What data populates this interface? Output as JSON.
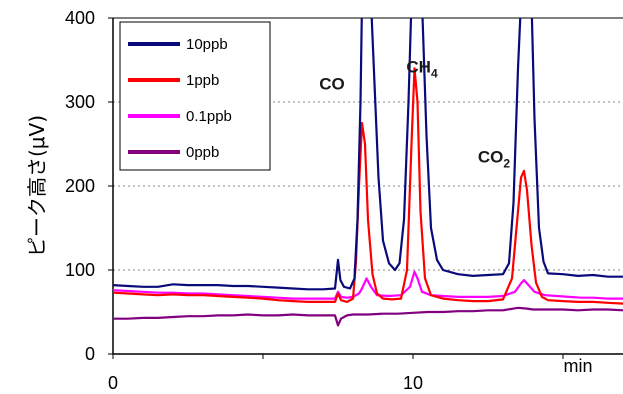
{
  "chart_data": {
    "type": "line",
    "xlabel": "min",
    "ylabel": "ピーク高さ(μV)",
    "xlim": [
      0,
      17
    ],
    "ylim": [
      0,
      400
    ],
    "x_ticks": [
      0,
      10
    ],
    "y_ticks": [
      0,
      100,
      200,
      300,
      400
    ],
    "grid": "horizontal dotted",
    "legend": "top-left",
    "annotations": [
      {
        "text": "CO",
        "sub": "",
        "x": 7.3,
        "y": 315
      },
      {
        "text": "CH",
        "sub": "4",
        "x": 10.3,
        "y": 335
      },
      {
        "text": "CO",
        "sub": "2",
        "x": 12.7,
        "y": 228
      }
    ],
    "series": [
      {
        "name": "10ppb",
        "color": "#0a0a7a",
        "points": [
          [
            0,
            82
          ],
          [
            0.5,
            81
          ],
          [
            1,
            80
          ],
          [
            1.5,
            80
          ],
          [
            2,
            83
          ],
          [
            2.5,
            82
          ],
          [
            3,
            82
          ],
          [
            3.5,
            82
          ],
          [
            4,
            81
          ],
          [
            4.5,
            81
          ],
          [
            5,
            80
          ],
          [
            5.5,
            79
          ],
          [
            6,
            78
          ],
          [
            6.5,
            77
          ],
          [
            7,
            77
          ],
          [
            7.4,
            78
          ],
          [
            7.5,
            112
          ],
          [
            7.58,
            88
          ],
          [
            7.7,
            80
          ],
          [
            7.9,
            78
          ],
          [
            8.05,
            90
          ],
          [
            8.15,
            160
          ],
          [
            8.25,
            300
          ],
          [
            8.3,
            420
          ],
          [
            8.6,
            420
          ],
          [
            8.85,
            210
          ],
          [
            9.0,
            135
          ],
          [
            9.2,
            108
          ],
          [
            9.4,
            100
          ],
          [
            9.55,
            108
          ],
          [
            9.7,
            160
          ],
          [
            9.85,
            300
          ],
          [
            9.95,
            420
          ],
          [
            10.3,
            420
          ],
          [
            10.45,
            260
          ],
          [
            10.6,
            150
          ],
          [
            10.8,
            112
          ],
          [
            11,
            100
          ],
          [
            11.5,
            95
          ],
          [
            12,
            93
          ],
          [
            12.5,
            94
          ],
          [
            13.0,
            95
          ],
          [
            13.2,
            108
          ],
          [
            13.35,
            180
          ],
          [
            13.5,
            340
          ],
          [
            13.6,
            420
          ],
          [
            13.95,
            420
          ],
          [
            14.05,
            280
          ],
          [
            14.2,
            150
          ],
          [
            14.35,
            110
          ],
          [
            14.5,
            96
          ],
          [
            15,
            95
          ],
          [
            15.5,
            93
          ],
          [
            16,
            94
          ],
          [
            16.5,
            92
          ],
          [
            17,
            92
          ]
        ]
      },
      {
        "name": "1ppb",
        "color": "#ff0000",
        "points": [
          [
            0,
            73
          ],
          [
            0.5,
            72
          ],
          [
            1,
            71
          ],
          [
            1.5,
            70
          ],
          [
            2,
            71
          ],
          [
            2.5,
            70
          ],
          [
            3,
            70
          ],
          [
            3.5,
            69
          ],
          [
            4,
            68
          ],
          [
            4.5,
            67
          ],
          [
            5,
            66
          ],
          [
            5.5,
            64
          ],
          [
            6,
            63
          ],
          [
            6.5,
            62
          ],
          [
            7,
            62
          ],
          [
            7.4,
            62
          ],
          [
            7.5,
            72
          ],
          [
            7.6,
            64
          ],
          [
            7.8,
            62
          ],
          [
            8.0,
            66
          ],
          [
            8.1,
            110
          ],
          [
            8.2,
            200
          ],
          [
            8.3,
            275
          ],
          [
            8.4,
            250
          ],
          [
            8.5,
            160
          ],
          [
            8.65,
            95
          ],
          [
            8.8,
            72
          ],
          [
            9.0,
            66
          ],
          [
            9.3,
            65
          ],
          [
            9.6,
            66
          ],
          [
            9.8,
            100
          ],
          [
            9.95,
            250
          ],
          [
            10.05,
            340
          ],
          [
            10.15,
            300
          ],
          [
            10.25,
            170
          ],
          [
            10.4,
            90
          ],
          [
            10.6,
            70
          ],
          [
            11,
            66
          ],
          [
            11.5,
            64
          ],
          [
            12,
            63
          ],
          [
            12.5,
            63
          ],
          [
            13.0,
            65
          ],
          [
            13.3,
            90
          ],
          [
            13.45,
            150
          ],
          [
            13.6,
            210
          ],
          [
            13.7,
            218
          ],
          [
            13.8,
            195
          ],
          [
            13.95,
            130
          ],
          [
            14.1,
            85
          ],
          [
            14.3,
            68
          ],
          [
            14.5,
            64
          ],
          [
            15,
            63
          ],
          [
            15.5,
            62
          ],
          [
            16,
            62
          ],
          [
            16.5,
            61
          ],
          [
            17,
            60
          ]
        ]
      },
      {
        "name": "0.1ppb",
        "color": "#ff00ff",
        "points": [
          [
            0,
            76
          ],
          [
            0.5,
            75
          ],
          [
            1,
            74
          ],
          [
            1.5,
            73
          ],
          [
            2,
            73
          ],
          [
            2.5,
            72
          ],
          [
            3,
            72
          ],
          [
            3.5,
            71
          ],
          [
            4,
            70
          ],
          [
            4.5,
            69
          ],
          [
            5,
            68
          ],
          [
            5.5,
            67
          ],
          [
            6,
            66
          ],
          [
            6.5,
            66
          ],
          [
            7,
            66
          ],
          [
            7.4,
            66
          ],
          [
            7.5,
            74
          ],
          [
            7.6,
            68
          ],
          [
            7.8,
            67
          ],
          [
            8.0,
            68
          ],
          [
            8.2,
            72
          ],
          [
            8.3,
            78
          ],
          [
            8.45,
            90
          ],
          [
            8.6,
            80
          ],
          [
            8.8,
            70
          ],
          [
            9.2,
            69
          ],
          [
            9.6,
            70
          ],
          [
            9.9,
            80
          ],
          [
            10.05,
            98
          ],
          [
            10.15,
            90
          ],
          [
            10.3,
            74
          ],
          [
            10.6,
            70
          ],
          [
            11,
            69
          ],
          [
            11.5,
            68
          ],
          [
            12,
            68
          ],
          [
            12.5,
            68
          ],
          [
            13,
            69
          ],
          [
            13.4,
            74
          ],
          [
            13.6,
            84
          ],
          [
            13.7,
            88
          ],
          [
            13.85,
            82
          ],
          [
            14.05,
            74
          ],
          [
            14.4,
            70
          ],
          [
            14.8,
            69
          ],
          [
            15.2,
            68
          ],
          [
            15.6,
            67
          ],
          [
            16,
            67
          ],
          [
            16.5,
            66
          ],
          [
            17,
            66
          ]
        ]
      },
      {
        "name": "0ppb",
        "color": "#800080",
        "points": [
          [
            0,
            42
          ],
          [
            0.5,
            42
          ],
          [
            1,
            43
          ],
          [
            1.5,
            43
          ],
          [
            2,
            44
          ],
          [
            2.5,
            45
          ],
          [
            3,
            45
          ],
          [
            3.5,
            46
          ],
          [
            4,
            46
          ],
          [
            4.5,
            47
          ],
          [
            5,
            46
          ],
          [
            5.5,
            46
          ],
          [
            6,
            47
          ],
          [
            6.5,
            46
          ],
          [
            7,
            46
          ],
          [
            7.4,
            46
          ],
          [
            7.5,
            34
          ],
          [
            7.6,
            42
          ],
          [
            7.8,
            46
          ],
          [
            8,
            47
          ],
          [
            8.5,
            47
          ],
          [
            9,
            48
          ],
          [
            9.5,
            48
          ],
          [
            10,
            49
          ],
          [
            10.5,
            50
          ],
          [
            11,
            50
          ],
          [
            11.5,
            51
          ],
          [
            12,
            51
          ],
          [
            12.5,
            52
          ],
          [
            13,
            52
          ],
          [
            13.5,
            55
          ],
          [
            13.8,
            54
          ],
          [
            14,
            53
          ],
          [
            14.5,
            53
          ],
          [
            15,
            53
          ],
          [
            15.5,
            52
          ],
          [
            16,
            53
          ],
          [
            16.5,
            53
          ],
          [
            17,
            52
          ]
        ]
      }
    ]
  }
}
